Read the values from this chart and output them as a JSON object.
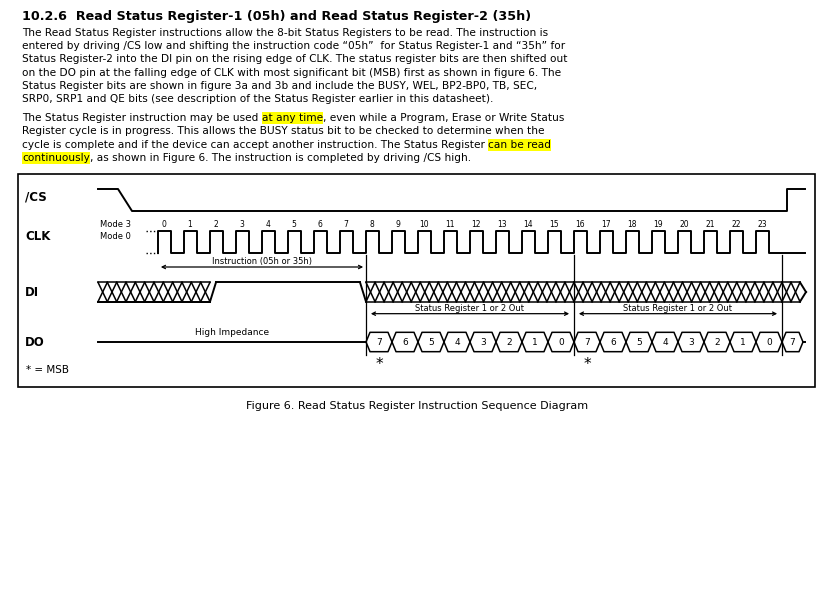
{
  "title": "10.2.6  Read Status Register-1 (05h) and Read Status Register-2 (35h)",
  "p1_lines": [
    "The Read Status Register instructions allow the 8-bit Status Registers to be read. The instruction is",
    "entered by driving /CS low and shifting the instruction code “05h”  for Status Register-1 and “35h” for",
    "Status Register-2 into the DI pin on the rising edge of CLK. The status register bits are then shifted out",
    "on the DO pin at the falling edge of CLK with most significant bit (MSB) first as shown in figure 6. The",
    "Status Register bits are shown in figure 3a and 3b and include the BUSY, WEL, BP2-BP0, TB, SEC,",
    "SRP0, SRP1 and QE bits (see description of the Status Register earlier in this datasheet)."
  ],
  "p2_seg1_pre": "The Status Register instruction may be used ",
  "p2_seg1_hl": "at any time",
  "p2_seg1_post": ", even while a Program, Erase or Write Status",
  "p2_line2": "Register cycle is in progress. This allows the BUSY status bit to be checked to determine when the",
  "p2_seg3_pre": "cycle is complete and if the device can accept another instruction. The Status Register ",
  "p2_seg3_hl": "can be read",
  "p2_seg4_hl": "continuously",
  "p2_seg4_post": ", as shown in Figure 6. The instruction is completed by driving /CS high.",
  "fig_caption": "Figure 6. Read Status Register Instruction Sequence Diagram",
  "highlight_color": "#ffff00",
  "text_color": "#000000",
  "background": "#ffffff",
  "clk_labels": [
    "0",
    "1",
    "2",
    "3",
    "4",
    "5",
    "6",
    "7",
    "8",
    "9",
    "10",
    "11",
    "12",
    "13",
    "14",
    "15",
    "16",
    "17",
    "18",
    "19",
    "20",
    "21",
    "22",
    "23"
  ],
  "do_bits_1": [
    "7",
    "6",
    "5",
    "4",
    "3",
    "2",
    "1",
    "0"
  ],
  "do_bits_2": [
    "7",
    "6",
    "5",
    "4",
    "3",
    "2",
    "1",
    "0"
  ]
}
